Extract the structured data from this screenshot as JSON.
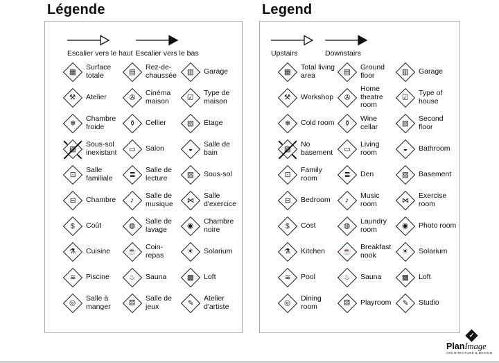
{
  "panels": [
    {
      "title": "Légende",
      "arrows": [
        {
          "label": "Escalier vers le haut",
          "style": "hollow"
        },
        {
          "label": "Escalier vers le bas",
          "style": "filled"
        }
      ],
      "items": [
        {
          "icon": "total-living-area",
          "glyph": "▦",
          "label": "Surface totale"
        },
        {
          "icon": "ground-floor",
          "glyph": "▤",
          "label": "Rez-de-chaussée"
        },
        {
          "icon": "garage",
          "glyph": "▥",
          "label": "Garage"
        },
        {
          "icon": "workshop",
          "glyph": "⚒",
          "label": "Atelier"
        },
        {
          "icon": "home-theatre",
          "glyph": "✇",
          "label": "Cinéma maison"
        },
        {
          "icon": "type-of-house",
          "glyph": "☑",
          "label": "Type de maison"
        },
        {
          "icon": "cold-room",
          "glyph": "❄",
          "label": "Chambre froide"
        },
        {
          "icon": "wine-cellar",
          "glyph": "⚱",
          "label": "Cellier"
        },
        {
          "icon": "second-floor",
          "glyph": "▧",
          "label": "Étage"
        },
        {
          "icon": "no-basement",
          "glyph": "▨",
          "label": "Sous-sol inexistant",
          "crossed": true
        },
        {
          "icon": "living-room",
          "glyph": "▭",
          "label": "Salon"
        },
        {
          "icon": "bathroom",
          "glyph": "◒",
          "label": "Salle de bain"
        },
        {
          "icon": "family-room",
          "glyph": "⊡",
          "label": "Salle familiale"
        },
        {
          "icon": "den",
          "glyph": "≣",
          "label": "Salle de lecture"
        },
        {
          "icon": "basement",
          "glyph": "▨",
          "label": "Sous-sol"
        },
        {
          "icon": "bedroom",
          "glyph": "⊟",
          "label": "Chambre"
        },
        {
          "icon": "music-room",
          "glyph": "♪",
          "label": "Salle de musique"
        },
        {
          "icon": "exercise-room",
          "glyph": "⋈",
          "label": "Salle d'exercice"
        },
        {
          "icon": "cost",
          "glyph": "$",
          "label": "Coût"
        },
        {
          "icon": "laundry-room",
          "glyph": "◍",
          "label": "Salle de lavage"
        },
        {
          "icon": "photo-room",
          "glyph": "◉",
          "label": "Chambre noire"
        },
        {
          "icon": "kitchen",
          "glyph": "⚗",
          "label": "Cuisine"
        },
        {
          "icon": "breakfast-nook",
          "glyph": "☕",
          "label": "Coin-repas"
        },
        {
          "icon": "solarium",
          "glyph": "☀",
          "label": "Solarium"
        },
        {
          "icon": "pool",
          "glyph": "≋",
          "label": "Piscine"
        },
        {
          "icon": "sauna",
          "glyph": "♨",
          "label": "Sauna"
        },
        {
          "icon": "loft",
          "glyph": "▩",
          "label": "Loft"
        },
        {
          "icon": "dining-room",
          "glyph": "◎",
          "label": "Salle à manger"
        },
        {
          "icon": "playroom",
          "glyph": "⚄",
          "label": "Salle de jeux"
        },
        {
          "icon": "studio",
          "glyph": "✎",
          "label": "Atelier d'artiste"
        }
      ]
    },
    {
      "title": "Legend",
      "arrows": [
        {
          "label": "Upstairs",
          "style": "hollow"
        },
        {
          "label": "Downstairs",
          "style": "filled"
        }
      ],
      "items": [
        {
          "icon": "total-living-area",
          "glyph": "▦",
          "label": "Total living area"
        },
        {
          "icon": "ground-floor",
          "glyph": "▤",
          "label": "Ground floor"
        },
        {
          "icon": "garage",
          "glyph": "▥",
          "label": "Garage"
        },
        {
          "icon": "workshop",
          "glyph": "⚒",
          "label": "Workshop"
        },
        {
          "icon": "home-theatre",
          "glyph": "✇",
          "label": "Home theatre room"
        },
        {
          "icon": "type-of-house",
          "glyph": "☑",
          "label": "Type of house"
        },
        {
          "icon": "cold-room",
          "glyph": "❄",
          "label": "Cold room"
        },
        {
          "icon": "wine-cellar",
          "glyph": "⚱",
          "label": "Wine cellar"
        },
        {
          "icon": "second-floor",
          "glyph": "▧",
          "label": "Second floor"
        },
        {
          "icon": "no-basement",
          "glyph": "▨",
          "label": "No basement",
          "crossed": true
        },
        {
          "icon": "living-room",
          "glyph": "▭",
          "label": "Living room"
        },
        {
          "icon": "bathroom",
          "glyph": "◒",
          "label": "Bathroom"
        },
        {
          "icon": "family-room",
          "glyph": "⊡",
          "label": "Family room"
        },
        {
          "icon": "den",
          "glyph": "≣",
          "label": "Den"
        },
        {
          "icon": "basement",
          "glyph": "▨",
          "label": "Basement"
        },
        {
          "icon": "bedroom",
          "glyph": "⊟",
          "label": "Bedroom"
        },
        {
          "icon": "music-room",
          "glyph": "♪",
          "label": "Music room"
        },
        {
          "icon": "exercise-room",
          "glyph": "⋈",
          "label": "Exercise room"
        },
        {
          "icon": "cost",
          "glyph": "$",
          "label": "Cost"
        },
        {
          "icon": "laundry-room",
          "glyph": "◍",
          "label": "Laundry room"
        },
        {
          "icon": "photo-room",
          "glyph": "◉",
          "label": "Photo room"
        },
        {
          "icon": "kitchen",
          "glyph": "⚗",
          "label": "Kitchen"
        },
        {
          "icon": "breakfast-nook",
          "glyph": "☕",
          "label": "Breakfast nook"
        },
        {
          "icon": "solarium",
          "glyph": "☀",
          "label": "Solarium"
        },
        {
          "icon": "pool",
          "glyph": "≋",
          "label": "Pool"
        },
        {
          "icon": "sauna",
          "glyph": "♨",
          "label": "Sauna"
        },
        {
          "icon": "loft",
          "glyph": "▩",
          "label": "Loft"
        },
        {
          "icon": "dining-room",
          "glyph": "◎",
          "label": "Dining room"
        },
        {
          "icon": "playroom",
          "glyph": "⚄",
          "label": "Playroom"
        },
        {
          "icon": "studio",
          "glyph": "✎",
          "label": "Studio"
        }
      ]
    }
  ],
  "logo": {
    "check": "✓",
    "plan": "Plan",
    "image": "Image",
    "tagline": "ARCHITECTURE & DESIGN"
  },
  "colors": {
    "ink": "#101010",
    "panel_border": "#a9a9a9",
    "background": "#ffffff"
  }
}
